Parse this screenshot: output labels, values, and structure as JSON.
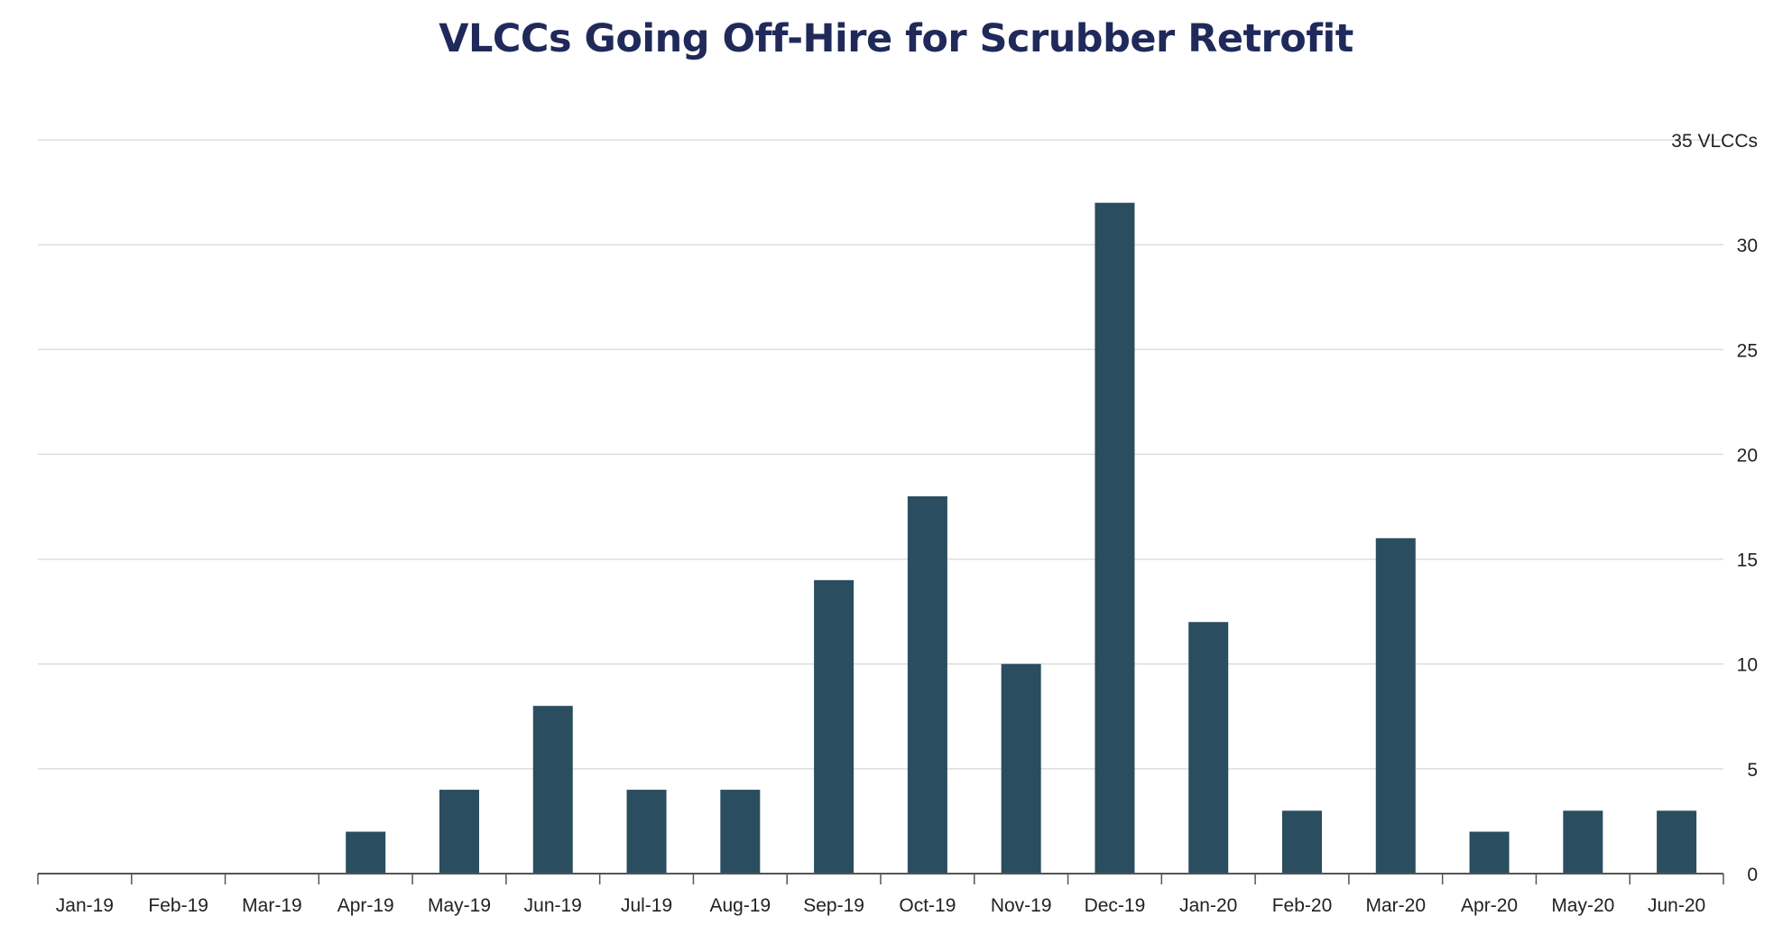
{
  "chart_data": {
    "type": "bar",
    "title": "VLCCs Going Off-Hire for Scrubber Retrofit",
    "xlabel": "",
    "ylabel": "",
    "categories": [
      "Jan-19",
      "Feb-19",
      "Mar-19",
      "Apr-19",
      "May-19",
      "Jun-19",
      "Jul-19",
      "Aug-19",
      "Sep-19",
      "Oct-19",
      "Nov-19",
      "Dec-19",
      "Jan-20",
      "Feb-20",
      "Mar-20",
      "Apr-20",
      "May-20",
      "Jun-20"
    ],
    "values": [
      0,
      0,
      0,
      2,
      4,
      8,
      4,
      4,
      14,
      18,
      10,
      32,
      12,
      3,
      16,
      2,
      3,
      3
    ],
    "ylim": [
      0,
      35
    ],
    "yticks": [
      0,
      5,
      10,
      15,
      20,
      25,
      30
    ],
    "top_tick_label": "35 VLCCs",
    "y_axis_side": "right",
    "grid": true,
    "bar_color": "#2a4d5f",
    "grid_color": "#dddddd",
    "axis_color": "#555555",
    "title_color": "#1f2a5a"
  }
}
